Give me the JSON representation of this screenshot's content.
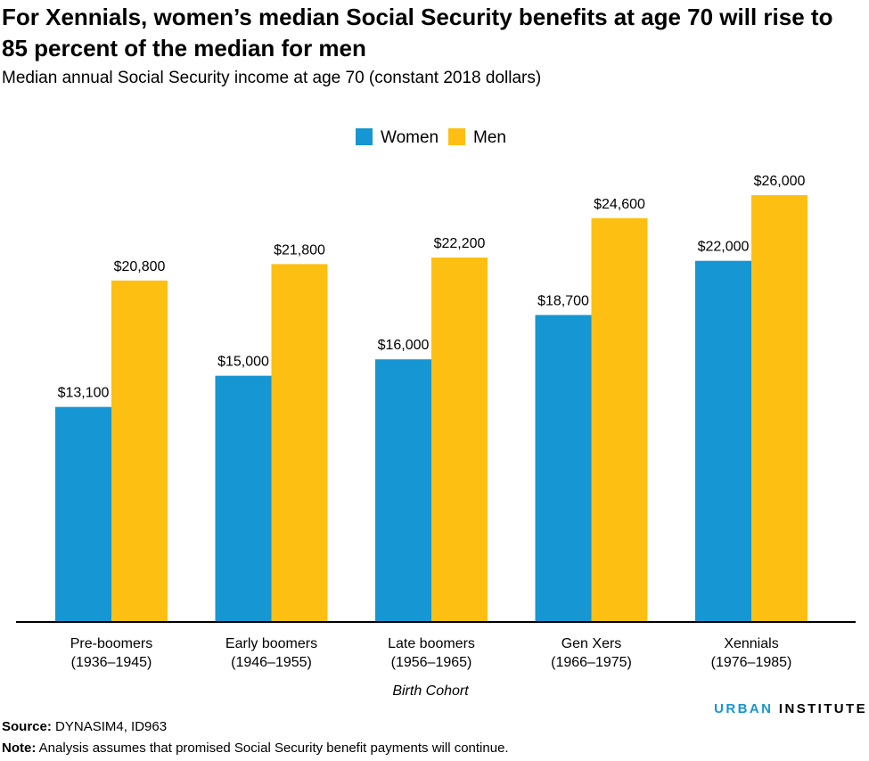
{
  "title": "For Xennials, women’s median Social Security benefits at age 70 will rise to 85 percent of the median for men",
  "subtitle": "Median annual Social Security income at age 70 (constant 2018 dollars)",
  "colors": {
    "women": "#1696d2",
    "men": "#fdbf11",
    "axis": "#000000"
  },
  "chart_data": {
    "type": "bar",
    "categories": [
      [
        "Pre-boomers",
        "(1936–1945)"
      ],
      [
        "Early boomers",
        "(1946–1955)"
      ],
      [
        "Late boomers",
        "(1956–1965)"
      ],
      [
        "Gen Xers",
        "(1966–1975)"
      ],
      [
        "Xennials",
        "(1976–1985)"
      ]
    ],
    "series": [
      {
        "name": "Women",
        "values": [
          13100,
          15000,
          16000,
          18700,
          22000
        ],
        "labels": [
          "$13,100",
          "$15,000",
          "$16,000",
          "$18,700",
          "$22,000"
        ]
      },
      {
        "name": "Men",
        "values": [
          20800,
          21800,
          22200,
          24600,
          26000
        ],
        "labels": [
          "$20,800",
          "$21,800",
          "$22,200",
          "$24,600",
          "$26,000"
        ]
      }
    ],
    "xlabel": "Birth Cohort",
    "ylabel": "",
    "ylim": [
      0,
      26000
    ],
    "grid": false,
    "legend": "top-center"
  },
  "footer": {
    "source_label": "Source:",
    "source_text": " DYNASIM4, ID963",
    "note_label": "Note:",
    "note_text": " Analysis assumes that promised Social Security benefit payments will continue.",
    "brand_first": "URBAN",
    "brand_second": " INSTITUTE"
  }
}
